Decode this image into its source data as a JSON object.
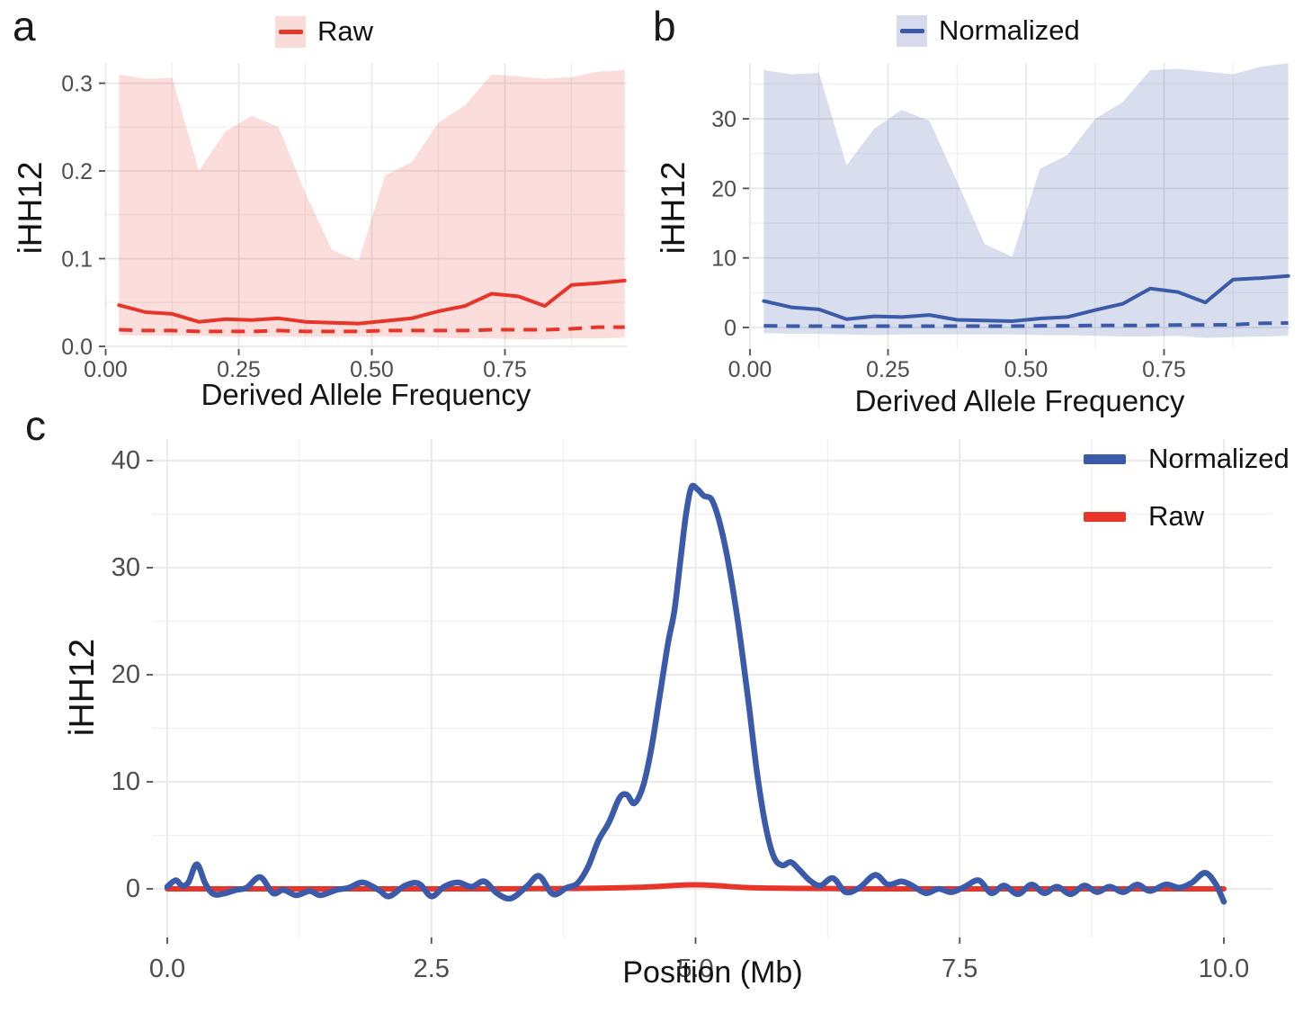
{
  "figure": {
    "panels": [
      {
        "letter": "a",
        "legend_label": "Raw",
        "x_label": "Derived Allele Frequency",
        "y_label": "iHH12"
      },
      {
        "letter": "b",
        "legend_label": "Normalized",
        "x_label": "Derived Allele Frequency",
        "y_label": "iHH12"
      },
      {
        "letter": "c",
        "x_label": "Position (Mb)",
        "y_label": "iHH12",
        "legend": [
          {
            "label": "Normalized"
          },
          {
            "label": "Raw"
          }
        ]
      }
    ],
    "colors": {
      "raw": "#e8352a",
      "normalized": "#3b5aa9",
      "raw_fill": "#f9dbd8",
      "normalized_fill": "#d7d9ec",
      "grid_major": "#e7e7e7",
      "grid_minor": "#f0f0f0",
      "tick_text": "#4d4d4d"
    }
  },
  "chart_data": [
    {
      "type": "area",
      "panel": "a",
      "legend": [
        "Raw"
      ],
      "xlabel": "Derived Allele Frequency",
      "ylabel": "iHH12",
      "xlim": [
        0,
        0.98
      ],
      "ylim": [
        -0.003,
        0.323
      ],
      "x_ticks": [
        0,
        0.25,
        0.5,
        0.75
      ],
      "x_tick_labels": [
        "0.00",
        "0.25",
        "0.50",
        "0.75"
      ],
      "x_minor": [
        0.125,
        0.375,
        0.625,
        0.875
      ],
      "y_ticks": [
        0,
        0.1,
        0.2,
        0.3
      ],
      "y_tick_labels": [
        "0.0",
        "0.1",
        "0.2",
        "0.3"
      ],
      "y_minor": [
        0.05,
        0.15,
        0.25
      ],
      "x": [
        0.025,
        0.075,
        0.125,
        0.175,
        0.225,
        0.275,
        0.325,
        0.375,
        0.425,
        0.475,
        0.525,
        0.575,
        0.625,
        0.675,
        0.725,
        0.775,
        0.825,
        0.875,
        0.925,
        0.975
      ],
      "ribbon_upper": [
        0.31,
        0.305,
        0.306,
        0.2,
        0.245,
        0.263,
        0.25,
        0.175,
        0.11,
        0.097,
        0.195,
        0.21,
        0.255,
        0.275,
        0.31,
        0.308,
        0.305,
        0.307,
        0.313,
        0.315
      ],
      "ribbon_lower": [
        0.013,
        0.012,
        0.012,
        0.012,
        0.011,
        0.011,
        0.011,
        0.011,
        0.011,
        0.011,
        0.011,
        0.011,
        0.01,
        0.009,
        0.009,
        0.008,
        0.008,
        0.009,
        0.009,
        0.01
      ],
      "mean_line": [
        0.047,
        0.039,
        0.037,
        0.028,
        0.031,
        0.03,
        0.032,
        0.028,
        0.027,
        0.026,
        0.029,
        0.032,
        0.04,
        0.046,
        0.06,
        0.057,
        0.046,
        0.07,
        0.072,
        0.075
      ],
      "dashed_line": [
        0.019,
        0.018,
        0.018,
        0.017,
        0.017,
        0.017,
        0.018,
        0.017,
        0.017,
        0.017,
        0.018,
        0.018,
        0.018,
        0.018,
        0.019,
        0.019,
        0.019,
        0.02,
        0.022,
        0.022
      ]
    },
    {
      "type": "area",
      "panel": "b",
      "legend": [
        "Normalized"
      ],
      "xlabel": "Derived Allele Frequency",
      "ylabel": "iHH12",
      "xlim": [
        0,
        0.98
      ],
      "ylim": [
        -3.1,
        38.0
      ],
      "x_ticks": [
        0,
        0.25,
        0.5,
        0.75
      ],
      "x_tick_labels": [
        "0.00",
        "0.25",
        "0.50",
        "0.75"
      ],
      "x_minor": [
        0.125,
        0.375,
        0.625,
        0.875
      ],
      "y_ticks": [
        0,
        10,
        20,
        30
      ],
      "y_tick_labels": [
        "0",
        "10",
        "20",
        "30"
      ],
      "y_minor": [
        5,
        15,
        25,
        35
      ],
      "x": [
        0.025,
        0.075,
        0.125,
        0.175,
        0.225,
        0.275,
        0.325,
        0.375,
        0.425,
        0.475,
        0.525,
        0.575,
        0.625,
        0.675,
        0.725,
        0.775,
        0.825,
        0.875,
        0.925,
        0.975
      ],
      "ribbon_upper": [
        37.0,
        36.4,
        36.6,
        23.3,
        28.6,
        31.3,
        29.7,
        21.0,
        12.0,
        10.2,
        22.8,
        24.8,
        30.0,
        32.4,
        37.0,
        37.2,
        36.8,
        36.4,
        37.5,
        38.0
      ],
      "ribbon_lower": [
        -0.8,
        -0.9,
        -0.9,
        -1.0,
        -1.1,
        -1.0,
        -1.0,
        -1.0,
        -1.0,
        -1.0,
        -1.1,
        -1.1,
        -1.2,
        -1.3,
        -1.3,
        -1.2,
        -1.5,
        -1.4,
        -1.3,
        -1.2
      ],
      "mean_line": [
        3.8,
        2.9,
        2.6,
        1.2,
        1.6,
        1.5,
        1.8,
        1.1,
        1.0,
        0.9,
        1.3,
        1.5,
        2.5,
        3.4,
        5.6,
        5.1,
        3.6,
        6.9,
        7.1,
        7.4
      ],
      "dashed_line": [
        0.25,
        0.2,
        0.2,
        0.15,
        0.2,
        0.2,
        0.2,
        0.2,
        0.2,
        0.2,
        0.25,
        0.25,
        0.3,
        0.3,
        0.3,
        0.35,
        0.35,
        0.4,
        0.6,
        0.65
      ]
    },
    {
      "type": "line",
      "panel": "c",
      "xlabel": "Position (Mb)",
      "ylabel": "iHH12",
      "xlim": [
        -0.14,
        10.46
      ],
      "ylim": [
        -4.5,
        42.0
      ],
      "x_ticks": [
        0,
        2.5,
        5,
        7.5,
        10
      ],
      "x_tick_labels": [
        "0.0",
        "2.5",
        "5.0",
        "7.5",
        "10.0"
      ],
      "x_minor": [
        1.25,
        3.75,
        6.25,
        8.75
      ],
      "y_ticks": [
        0,
        10,
        20,
        30,
        40
      ],
      "y_tick_labels": [
        "0",
        "10",
        "20",
        "30",
        "40"
      ],
      "y_minor": [
        5,
        15,
        25,
        35
      ],
      "series": [
        {
          "name": "Normalized",
          "color": "#3b5aa9",
          "x": [
            0.0,
            0.08,
            0.14,
            0.2,
            0.28,
            0.36,
            0.44,
            0.55,
            0.65,
            0.75,
            0.88,
            1.0,
            1.1,
            1.22,
            1.35,
            1.45,
            1.6,
            1.72,
            1.85,
            2.0,
            2.1,
            2.25,
            2.38,
            2.5,
            2.62,
            2.75,
            2.88,
            3.0,
            3.12,
            3.25,
            3.4,
            3.52,
            3.65,
            3.78,
            3.88,
            3.98,
            4.08,
            4.18,
            4.28,
            4.35,
            4.42,
            4.5,
            4.58,
            4.66,
            4.74,
            4.8,
            4.86,
            4.91,
            4.96,
            5.02,
            5.08,
            5.15,
            5.22,
            5.3,
            5.4,
            5.5,
            5.58,
            5.66,
            5.74,
            5.82,
            5.9,
            5.98,
            6.08,
            6.18,
            6.3,
            6.42,
            6.55,
            6.7,
            6.82,
            6.95,
            7.05,
            7.18,
            7.3,
            7.42,
            7.55,
            7.68,
            7.8,
            7.92,
            8.05,
            8.18,
            8.3,
            8.42,
            8.55,
            8.68,
            8.8,
            8.92,
            9.05,
            9.18,
            9.3,
            9.45,
            9.58,
            9.7,
            9.82,
            9.92,
            10.0
          ],
          "y": [
            0.2,
            0.8,
            0.3,
            0.6,
            2.3,
            0.5,
            -0.5,
            -0.4,
            -0.1,
            0.1,
            1.1,
            -0.4,
            -0.1,
            -0.6,
            -0.2,
            -0.6,
            -0.1,
            0.1,
            0.6,
            -0.1,
            -0.7,
            0.3,
            0.5,
            -0.7,
            0.2,
            0.6,
            0.2,
            0.7,
            -0.4,
            -0.9,
            0.2,
            1.2,
            -0.5,
            0.1,
            0.5,
            2.0,
            4.5,
            6.2,
            8.5,
            8.8,
            8.0,
            9.5,
            13.0,
            18.0,
            23.0,
            26.0,
            31.0,
            35.0,
            37.5,
            37.3,
            36.7,
            36.4,
            34.5,
            31.0,
            25.0,
            17.5,
            11.0,
            6.0,
            3.0,
            2.2,
            2.5,
            1.8,
            0.8,
            0.3,
            1.0,
            -0.3,
            0.1,
            1.3,
            0.4,
            0.7,
            0.3,
            -0.4,
            0.0,
            -0.3,
            0.2,
            0.8,
            -0.4,
            0.3,
            -0.5,
            0.4,
            -0.4,
            0.2,
            -0.5,
            0.3,
            -0.3,
            0.2,
            -0.3,
            0.4,
            -0.2,
            0.4,
            0.1,
            0.6,
            1.5,
            0.5,
            -1.2
          ]
        },
        {
          "name": "Raw",
          "color": "#e8352a",
          "x": [
            0,
            1,
            2,
            3,
            3.5,
            4,
            4.3,
            4.6,
            4.8,
            5.0,
            5.2,
            5.5,
            6,
            6.5,
            7,
            8,
            9,
            10
          ],
          "y": [
            0,
            0,
            0,
            0,
            0.02,
            0.05,
            0.1,
            0.2,
            0.32,
            0.38,
            0.3,
            0.12,
            0.04,
            0.01,
            0,
            0,
            0,
            0
          ]
        }
      ]
    }
  ]
}
